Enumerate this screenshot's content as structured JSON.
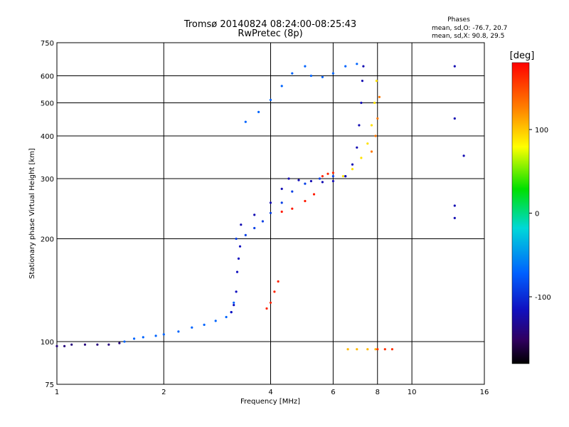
{
  "chart_data": {
    "type": "scatter",
    "title": "Tromsø 20140824 08:24:00-08:25:43",
    "subtitle": "RwPretec (8p)",
    "xlabel": "Frequency [MHz]",
    "ylabel": "Stationary phase Virtual Height [km]",
    "x_scale": "log",
    "y_scale": "log",
    "xlim": [
      1,
      16
    ],
    "ylim": [
      75,
      750
    ],
    "x_ticks": [
      "1",
      "2",
      "4",
      "6",
      "8",
      "10",
      "16"
    ],
    "y_ticks": [
      "75",
      "100",
      "200",
      "300",
      "400",
      "500",
      "600",
      "750"
    ],
    "grid": true,
    "stats": {
      "heading": "Phases",
      "line_o": "mean, sd,O: -76.7, 20.7",
      "line_x": "mean, sd,X:  90.8, 29.5"
    },
    "colorbar": {
      "label": "[deg]",
      "range": [
        -180,
        180
      ],
      "ticks": [
        "100",
        "0",
        "-100"
      ],
      "tick_values": [
        100,
        0,
        -100
      ]
    },
    "traces": [
      {
        "phase": -140,
        "points": [
          [
            1.0,
            97
          ],
          [
            1.05,
            97
          ],
          [
            1.1,
            98
          ],
          [
            1.2,
            98
          ],
          [
            1.3,
            98
          ],
          [
            1.4,
            98
          ],
          [
            1.5,
            99
          ]
        ]
      },
      {
        "phase": -70,
        "points": [
          [
            1.55,
            100
          ],
          [
            1.65,
            102
          ],
          [
            1.75,
            103
          ],
          [
            1.9,
            104
          ],
          [
            2.0,
            105
          ],
          [
            2.2,
            107
          ],
          [
            2.4,
            110
          ],
          [
            2.6,
            112
          ],
          [
            2.8,
            115
          ],
          [
            3.0,
            118
          ],
          [
            3.1,
            122
          ],
          [
            3.15,
            130
          ]
        ]
      },
      {
        "phase": -115,
        "points": [
          [
            3.1,
            122
          ],
          [
            3.15,
            128
          ],
          [
            3.2,
            140
          ],
          [
            3.22,
            160
          ],
          [
            3.25,
            175
          ],
          [
            3.28,
            190
          ]
        ]
      },
      {
        "phase": -90,
        "points": [
          [
            3.2,
            200
          ],
          [
            3.4,
            205
          ],
          [
            3.6,
            215
          ],
          [
            3.8,
            225
          ],
          [
            4.0,
            238
          ],
          [
            4.3,
            255
          ],
          [
            4.6,
            275
          ],
          [
            5.0,
            290
          ],
          [
            5.5,
            300
          ],
          [
            6.0,
            305
          ],
          [
            6.5,
            305
          ]
        ]
      },
      {
        "phase": -120,
        "points": [
          [
            3.3,
            220
          ],
          [
            3.6,
            235
          ],
          [
            4.0,
            255
          ],
          [
            4.3,
            280
          ],
          [
            4.5,
            300
          ],
          [
            4.8,
            297
          ],
          [
            5.2,
            295
          ],
          [
            5.6,
            293
          ],
          [
            6.0,
            295
          ],
          [
            6.5,
            305
          ],
          [
            6.8,
            330
          ],
          [
            7.0,
            370
          ],
          [
            7.1,
            430
          ],
          [
            7.2,
            500
          ],
          [
            7.25,
            580
          ],
          [
            7.3,
            640
          ]
        ]
      },
      {
        "phase": 90,
        "points": [
          [
            6.4,
            305
          ],
          [
            6.8,
            320
          ],
          [
            7.2,
            345
          ],
          [
            7.5,
            380
          ],
          [
            7.7,
            430
          ],
          [
            7.85,
            500
          ],
          [
            7.95,
            580
          ]
        ]
      },
      {
        "phase": 130,
        "points": [
          [
            7.7,
            360
          ],
          [
            7.9,
            400
          ],
          [
            8.0,
            450
          ],
          [
            8.1,
            520
          ]
        ]
      },
      {
        "phase": 165,
        "points": [
          [
            5.6,
            305
          ],
          [
            5.8,
            310
          ],
          [
            6.0,
            312
          ]
        ]
      },
      {
        "phase": 170,
        "points": [
          [
            4.3,
            240
          ],
          [
            4.6,
            245
          ],
          [
            5.0,
            258
          ],
          [
            5.3,
            270
          ]
        ]
      },
      {
        "phase": 165,
        "points": [
          [
            3.9,
            125
          ],
          [
            4.0,
            130
          ],
          [
            4.1,
            140
          ],
          [
            4.2,
            150
          ]
        ]
      },
      {
        "phase": -70,
        "points": [
          [
            3.4,
            440
          ],
          [
            3.7,
            470
          ],
          [
            4.0,
            510
          ],
          [
            4.3,
            560
          ],
          [
            4.6,
            610
          ],
          [
            5.0,
            640
          ],
          [
            5.2,
            600
          ],
          [
            5.6,
            595
          ],
          [
            6.0,
            610
          ],
          [
            6.5,
            640
          ],
          [
            7.0,
            650
          ]
        ]
      },
      {
        "phase": 105,
        "points": [
          [
            6.6,
            95
          ],
          [
            7.0,
            95
          ],
          [
            7.5,
            95
          ],
          [
            7.9,
            95
          ]
        ]
      },
      {
        "phase": 160,
        "points": [
          [
            8.0,
            95
          ],
          [
            8.4,
            95
          ],
          [
            8.8,
            95
          ]
        ]
      },
      {
        "phase": -120,
        "points": [
          [
            13.2,
            640
          ],
          [
            13.2,
            450
          ],
          [
            13.2,
            250
          ],
          [
            13.2,
            230
          ],
          [
            14.0,
            350
          ]
        ]
      }
    ]
  }
}
